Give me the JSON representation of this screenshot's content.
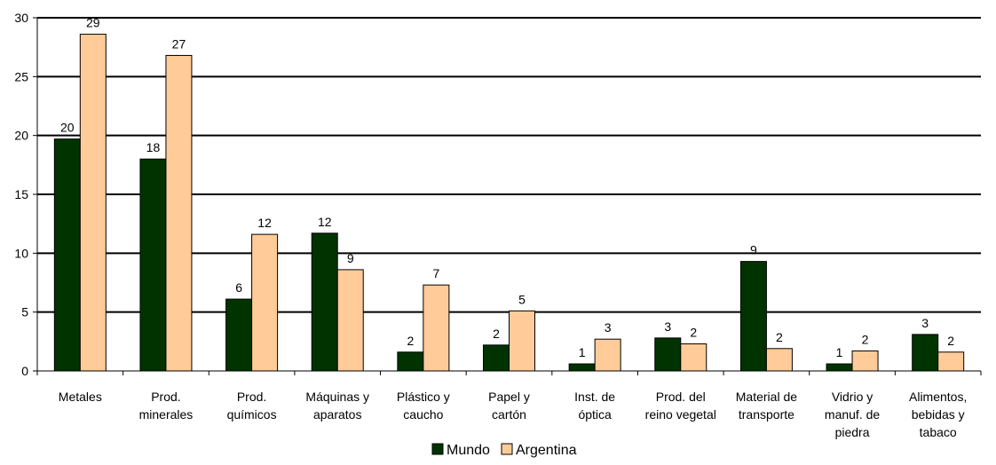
{
  "chart_data": {
    "type": "bar",
    "title": "",
    "xlabel": "",
    "ylabel": "",
    "ylim": [
      0,
      30
    ],
    "yticks": [
      0,
      5,
      10,
      15,
      20,
      25,
      30
    ],
    "grid": true,
    "legend_position": "bottom",
    "categories": [
      [
        "Metales"
      ],
      [
        "Prod.",
        "minerales"
      ],
      [
        "Prod.",
        "químicos"
      ],
      [
        "Máquinas y",
        "aparatos"
      ],
      [
        "Plástico y",
        "caucho"
      ],
      [
        "Papel y",
        "cartón"
      ],
      [
        "Inst. de",
        "óptica"
      ],
      [
        "Prod. del",
        "reino vegetal"
      ],
      [
        "Material de",
        "transporte"
      ],
      [
        "Vidrio y",
        "manuf. de",
        "piedra"
      ],
      [
        "Alimentos,",
        "bebidas y",
        "tabaco"
      ]
    ],
    "series": [
      {
        "name": "Mundo",
        "color": "#003300",
        "values": [
          19.7,
          18.0,
          6.1,
          11.7,
          1.6,
          2.2,
          0.6,
          2.8,
          9.3,
          0.6,
          3.1
        ],
        "labels": [
          "20",
          "18",
          "6",
          "12",
          "2",
          "2",
          "1",
          "3",
          "9",
          "1",
          "3"
        ]
      },
      {
        "name": "Argentina",
        "color": "#ffcc99",
        "values": [
          28.6,
          26.8,
          11.6,
          8.6,
          7.3,
          5.1,
          2.7,
          2.3,
          1.9,
          1.7,
          1.6
        ],
        "labels": [
          "29",
          "27",
          "12",
          "9",
          "7",
          "5",
          "3",
          "2",
          "2",
          "2",
          "2"
        ]
      }
    ]
  }
}
